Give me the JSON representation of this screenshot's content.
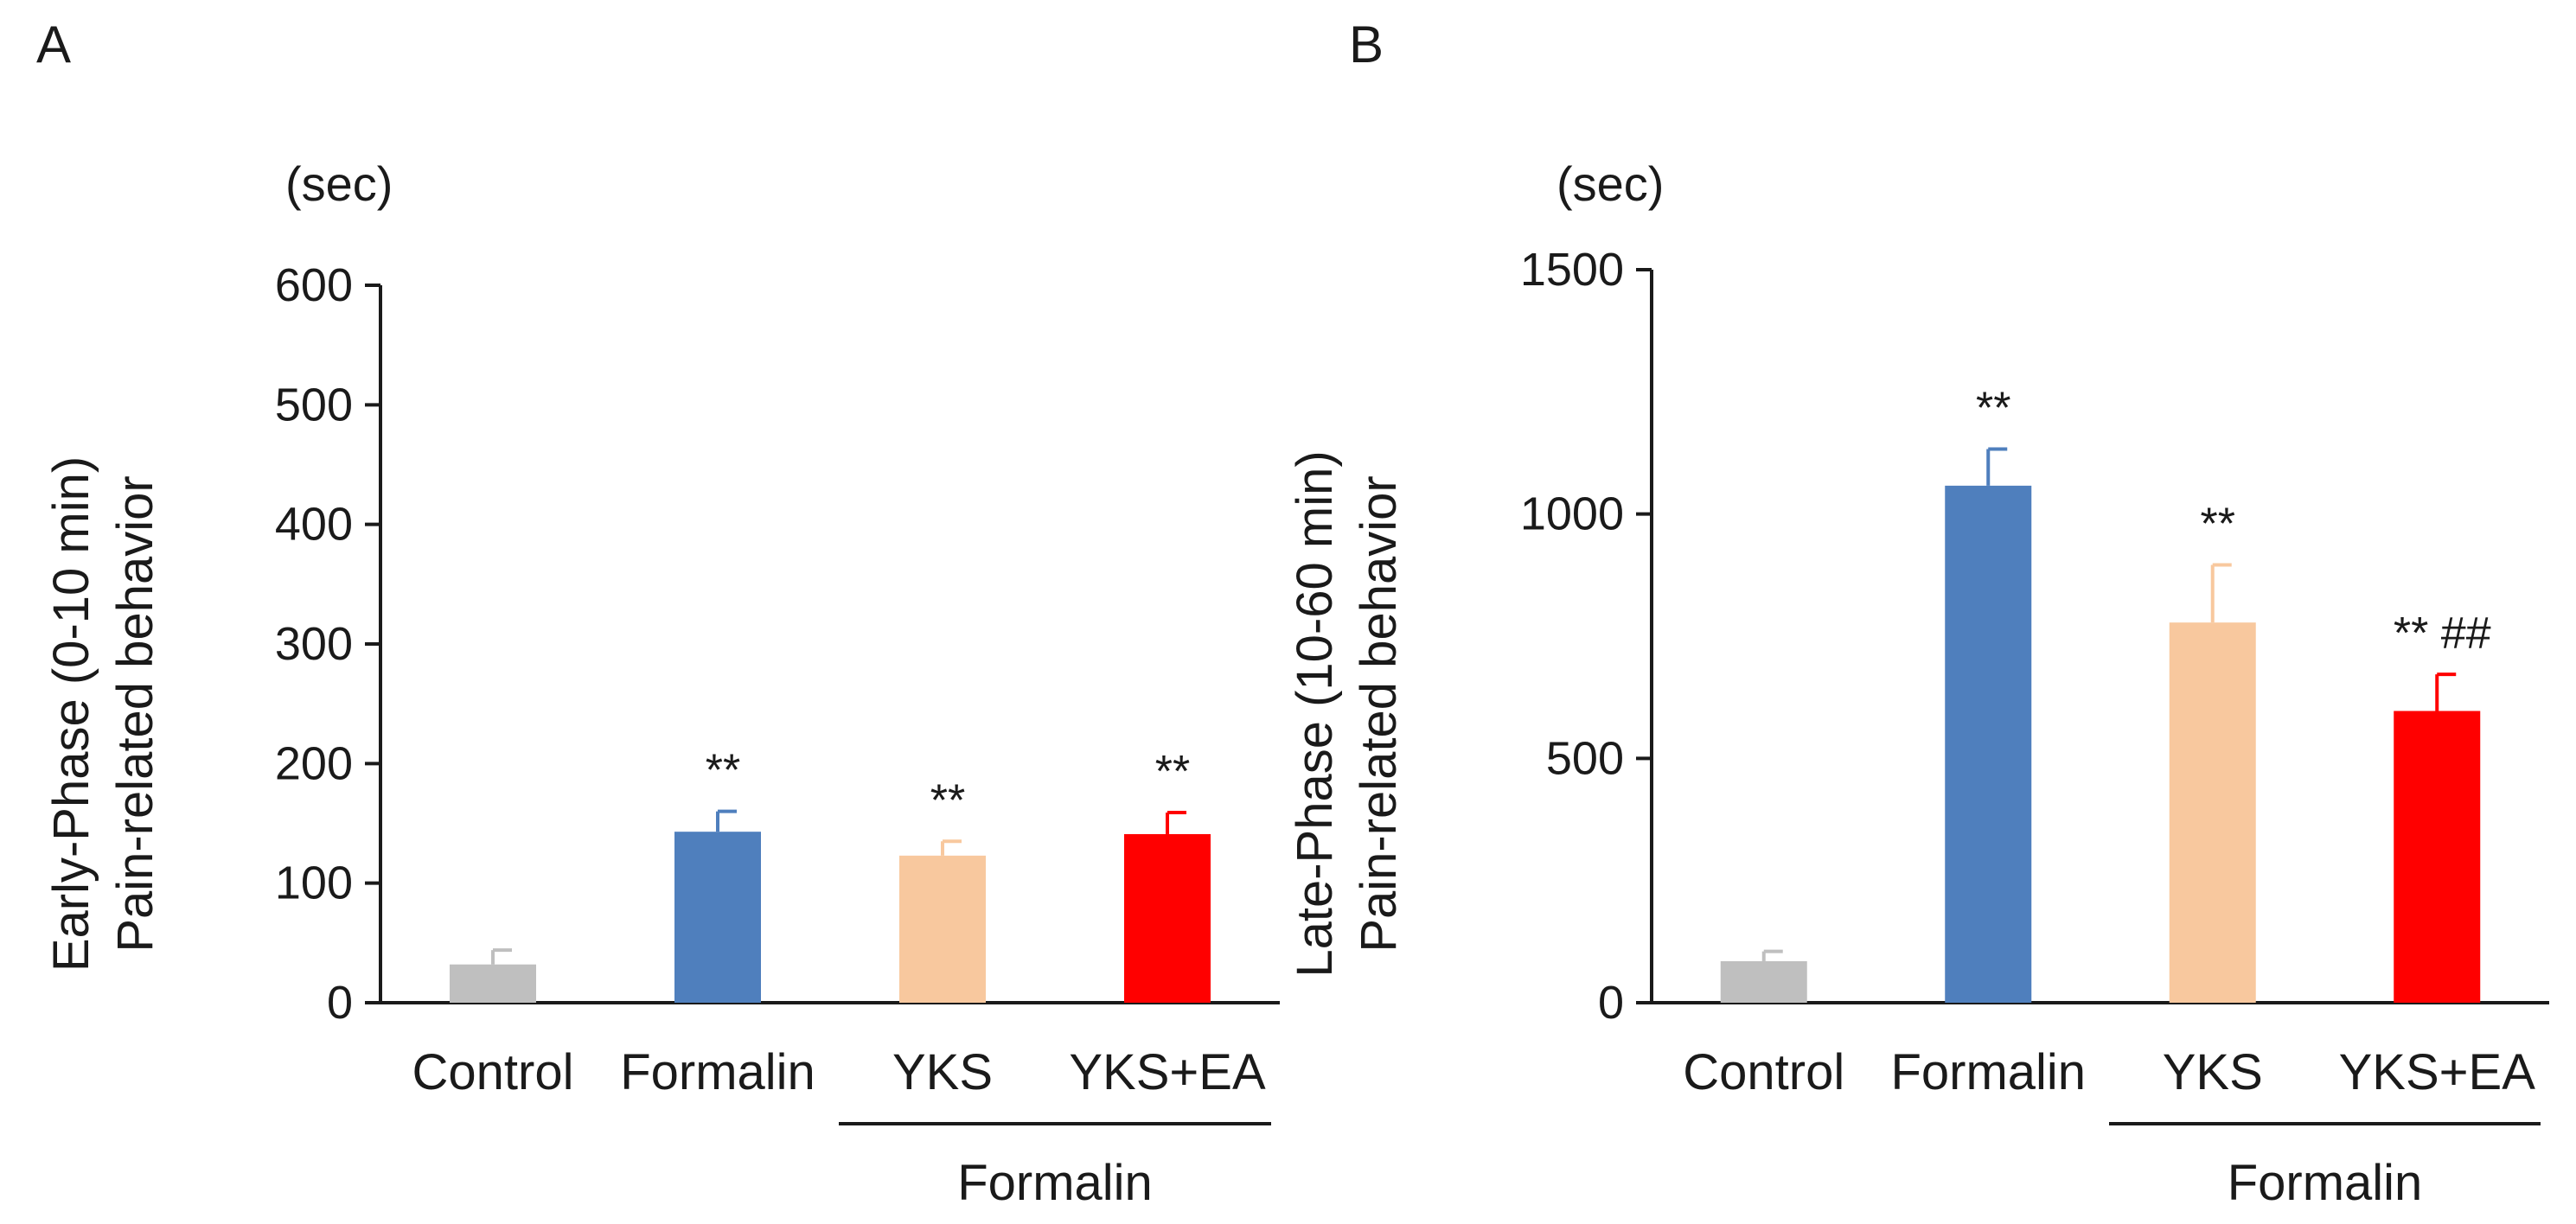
{
  "chart_data": [
    {
      "type": "bar",
      "panel_label": "A",
      "unit_label": "(sec)",
      "ylabel_lines": [
        "Early-Phase (0-10 min)",
        "Pain-related behavior"
      ],
      "ylim": [
        0,
        600
      ],
      "yticks": [
        0,
        100,
        200,
        300,
        400,
        500,
        600
      ],
      "categories": [
        "Control",
        "Formalin",
        "YKS",
        "YKS+EA"
      ],
      "values": [
        32,
        143,
        123,
        141
      ],
      "errors": [
        12,
        17,
        12,
        18
      ],
      "colors": [
        "#bfbfbf",
        "#4f7fbd",
        "#f8c89e",
        "#ff0000"
      ],
      "annotations": [
        "",
        "**",
        "**",
        "**"
      ],
      "group_label": "Formalin",
      "group_categories": [
        2,
        3
      ]
    },
    {
      "type": "bar",
      "panel_label": "B",
      "unit_label": "(sec)",
      "ylabel_lines": [
        "Late-Phase (10-60 min)",
        "Pain-related behavior"
      ],
      "ylim": [
        0,
        1500
      ],
      "yticks": [
        0,
        500,
        1000,
        1500
      ],
      "categories": [
        "Control",
        "Formalin",
        "YKS",
        "YKS+EA"
      ],
      "values": [
        85,
        1058,
        778,
        597
      ],
      "errors": [
        20,
        75,
        118,
        75
      ],
      "colors": [
        "#bfbfbf",
        "#4f7fbd",
        "#f8c89e",
        "#ff0000"
      ],
      "annotations": [
        "",
        "**",
        "**",
        "** ##"
      ],
      "group_label": "Formalin",
      "group_categories": [
        2,
        3
      ]
    }
  ]
}
